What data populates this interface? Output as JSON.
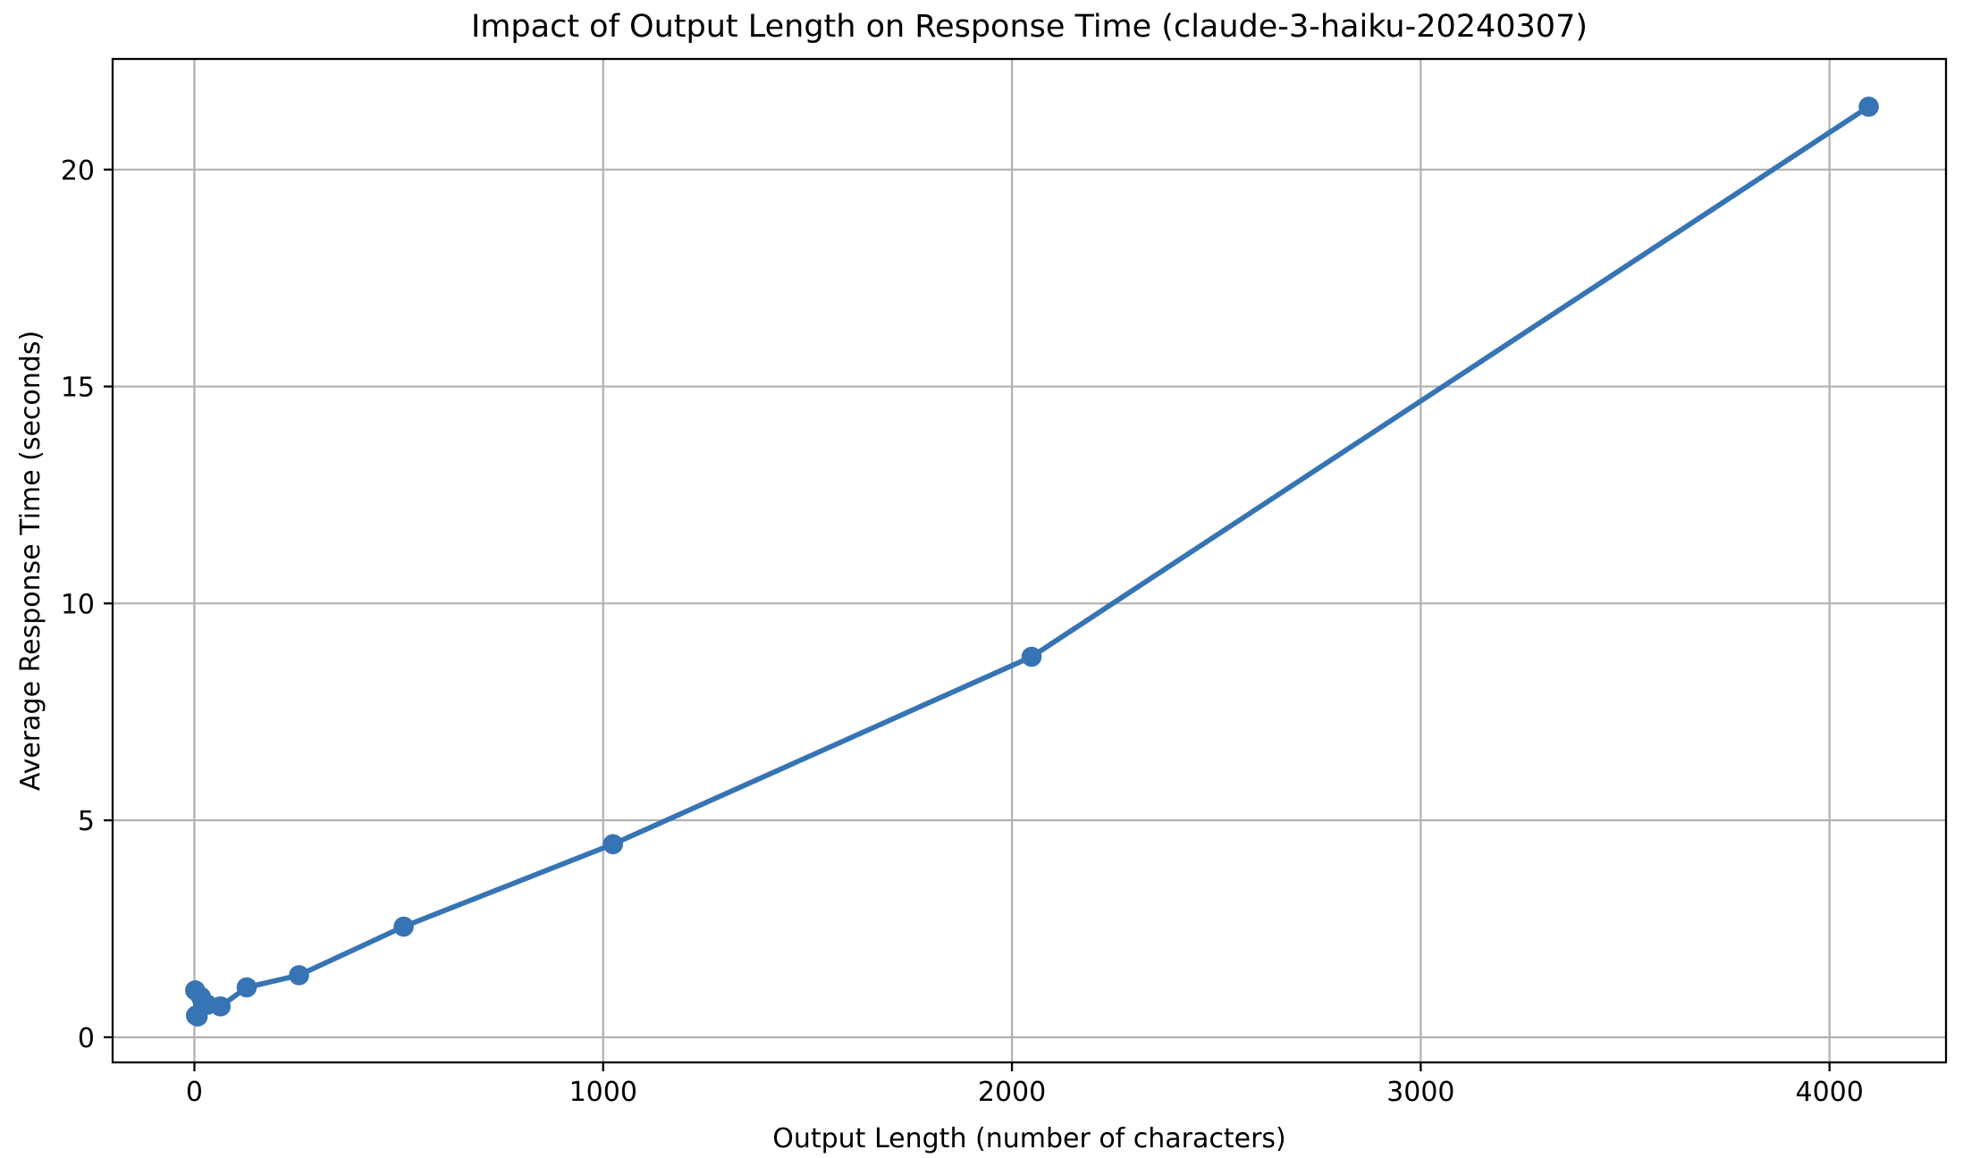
{
  "chart_data": {
    "type": "line",
    "title": "Impact of Output Length on Response Time (claude-3-haiku-20240307)",
    "xlabel": "Output Length (number of characters)",
    "ylabel": "Average Response Time (seconds)",
    "series": [
      {
        "name": "average-response-time",
        "x": [
          2,
          4,
          8,
          16,
          32,
          64,
          128,
          256,
          512,
          1024,
          2048,
          4096
        ],
        "y": [
          1.08,
          0.5,
          0.48,
          0.93,
          0.75,
          0.71,
          1.15,
          1.43,
          2.55,
          4.45,
          8.77,
          21.45
        ]
      }
    ],
    "xticks": [
      0,
      1000,
      2000,
      3000,
      4000
    ],
    "yticks": [
      0,
      5,
      10,
      15,
      20
    ],
    "xlim": [
      -200,
      4285
    ],
    "ylim": [
      -0.58,
      22.55
    ],
    "grid": true,
    "legend_position": "none",
    "style": {
      "line_color": "#3674b4",
      "marker": "circle",
      "marker_radius": 11.3,
      "line_width": 5.8,
      "grid_color": "#b0b0b0",
      "spine_color": "#000000",
      "text_color": "#000000",
      "background": "#ffffff"
    }
  }
}
